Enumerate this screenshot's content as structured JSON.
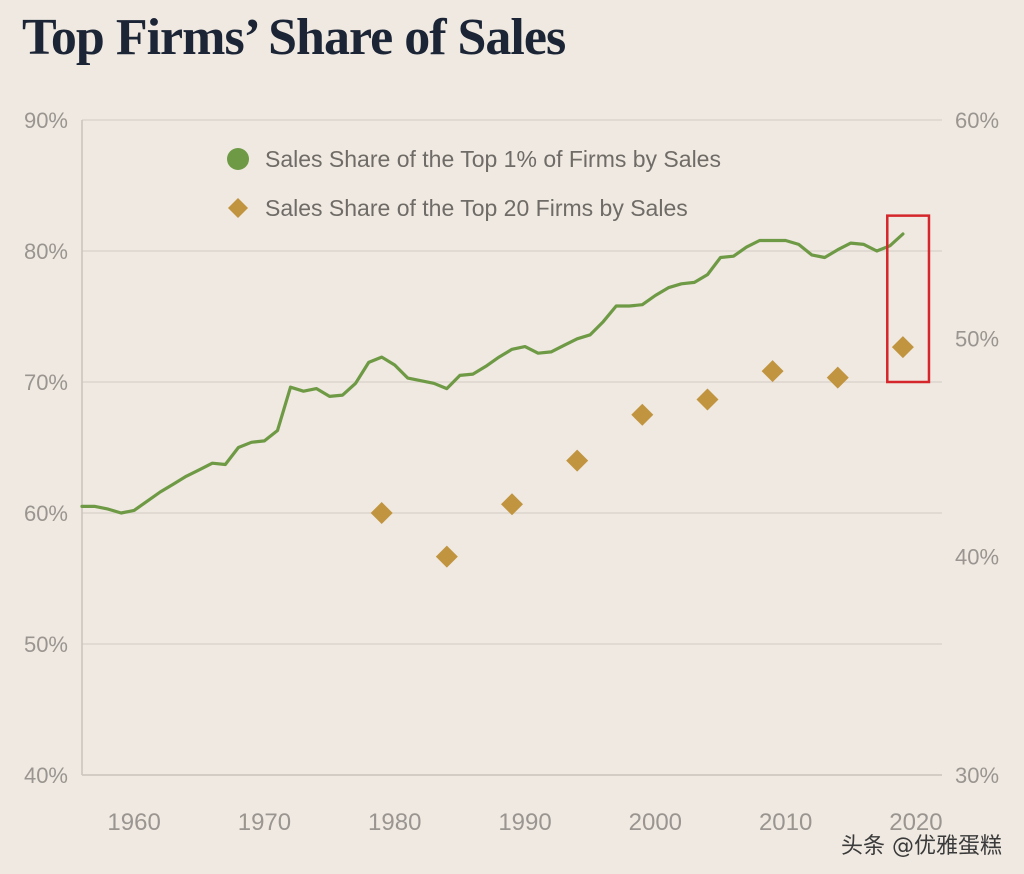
{
  "chart_data": {
    "type": "line",
    "title": "Top Firms’ Share of Sales",
    "xlim": [
      1956,
      2022
    ],
    "x_ticks": [
      "1960",
      "1970",
      "1980",
      "1990",
      "2000",
      "2010",
      "2020"
    ],
    "y_left": {
      "ylim": [
        40,
        90
      ],
      "ticks": [
        "40%",
        "50%",
        "60%",
        "70%",
        "80%",
        "90%"
      ]
    },
    "y_right": {
      "ylim": [
        30,
        60
      ],
      "ticks": [
        "30%",
        "40%",
        "50%",
        "60%"
      ]
    },
    "grid": true,
    "legend_position": "top-center",
    "series": [
      {
        "name": "Sales Share of the Top 1% of Firms  by Sales",
        "kind": "line",
        "axis": "left",
        "color": "#6f9a45",
        "points": [
          [
            1956,
            60.5
          ],
          [
            1957,
            60.5
          ],
          [
            1958,
            60.3
          ],
          [
            1959,
            60.0
          ],
          [
            1960,
            60.2
          ],
          [
            1961,
            60.9
          ],
          [
            1962,
            61.6
          ],
          [
            1963,
            62.2
          ],
          [
            1964,
            62.8
          ],
          [
            1965,
            63.3
          ],
          [
            1966,
            63.8
          ],
          [
            1967,
            63.7
          ],
          [
            1968,
            65.0
          ],
          [
            1969,
            65.4
          ],
          [
            1970,
            65.5
          ],
          [
            1971,
            66.3
          ],
          [
            1972,
            69.6
          ],
          [
            1973,
            69.3
          ],
          [
            1974,
            69.5
          ],
          [
            1975,
            68.9
          ],
          [
            1976,
            69.0
          ],
          [
            1977,
            69.9
          ],
          [
            1978,
            71.5
          ],
          [
            1979,
            71.9
          ],
          [
            1980,
            71.3
          ],
          [
            1981,
            70.3
          ],
          [
            1982,
            70.1
          ],
          [
            1983,
            69.9
          ],
          [
            1984,
            69.5
          ],
          [
            1985,
            70.5
          ],
          [
            1986,
            70.6
          ],
          [
            1987,
            71.2
          ],
          [
            1988,
            71.9
          ],
          [
            1989,
            72.5
          ],
          [
            1990,
            72.7
          ],
          [
            1991,
            72.2
          ],
          [
            1992,
            72.3
          ],
          [
            1993,
            72.8
          ],
          [
            1994,
            73.3
          ],
          [
            1995,
            73.6
          ],
          [
            1996,
            74.6
          ],
          [
            1997,
            75.8
          ],
          [
            1998,
            75.8
          ],
          [
            1999,
            75.9
          ],
          [
            2000,
            76.6
          ],
          [
            2001,
            77.2
          ],
          [
            2002,
            77.5
          ],
          [
            2003,
            77.6
          ],
          [
            2004,
            78.2
          ],
          [
            2005,
            79.5
          ],
          [
            2006,
            79.6
          ],
          [
            2007,
            80.3
          ],
          [
            2008,
            80.8
          ],
          [
            2009,
            80.8
          ],
          [
            2010,
            80.8
          ],
          [
            2011,
            80.5
          ],
          [
            2012,
            79.7
          ],
          [
            2013,
            79.5
          ],
          [
            2014,
            80.1
          ],
          [
            2015,
            80.6
          ],
          [
            2016,
            80.5
          ],
          [
            2017,
            80.0
          ],
          [
            2018,
            80.4
          ],
          [
            2019,
            81.3
          ]
        ]
      },
      {
        "name": "Sales Share of the Top 20 Firms by Sales",
        "kind": "scatter",
        "axis": "right",
        "color": "#c1943f",
        "points": [
          [
            1979,
            42.0
          ],
          [
            1984,
            40.0
          ],
          [
            1989,
            42.4
          ],
          [
            1994,
            44.4
          ],
          [
            1999,
            46.5
          ],
          [
            2004,
            47.2
          ],
          [
            2009,
            48.5
          ],
          [
            2014,
            48.2
          ],
          [
            2019,
            49.6
          ]
        ]
      }
    ],
    "annotation": {
      "type": "box",
      "x_range": [
        2017.8,
        2021.0
      ],
      "y_range_left": [
        70.0,
        82.7
      ],
      "color": "#d5262b"
    }
  },
  "watermark": "头条 @优雅蛋糕"
}
